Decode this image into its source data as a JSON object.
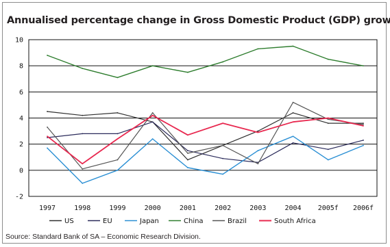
{
  "page": {
    "title": "Annualised percentage change in Gross Domestic Product (GDP) growth",
    "source": "Source: Standard Bank of SA – Economic Research Division."
  },
  "chart_data": {
    "type": "line",
    "title": "Annualised percentage change in Gross Domestic Product (GDP) growth",
    "xlabel": "",
    "ylabel": "",
    "categories": [
      "1997",
      "1998",
      "1999",
      "2000",
      "2001",
      "2002",
      "2003",
      "2004",
      "2005f",
      "2006f"
    ],
    "ylim": [
      -2,
      10
    ],
    "yticks": [
      -2,
      0,
      2,
      4,
      6,
      8,
      10
    ],
    "grid": "horizontal",
    "legend_position": "bottom",
    "series": [
      {
        "name": "US",
        "color": "#2f2f2f",
        "values": [
          4.5,
          4.2,
          4.4,
          3.7,
          0.8,
          1.9,
          3.0,
          4.4,
          3.6,
          3.6
        ]
      },
      {
        "name": "EU",
        "color": "#2a2a5a",
        "values": [
          2.5,
          2.8,
          2.8,
          3.7,
          1.5,
          0.9,
          0.6,
          2.1,
          1.6,
          2.3
        ]
      },
      {
        "name": "Japan",
        "color": "#2a8fd4",
        "values": [
          1.7,
          -1.0,
          0.0,
          2.4,
          0.2,
          -0.3,
          1.5,
          2.6,
          0.8,
          1.9
        ]
      },
      {
        "name": "China",
        "color": "#2e7d2e",
        "values": [
          8.8,
          7.8,
          7.1,
          8.0,
          7.5,
          8.3,
          9.3,
          9.5,
          8.5,
          8.0
        ]
      },
      {
        "name": "Brazil",
        "color": "#555555",
        "values": [
          3.3,
          0.1,
          0.8,
          4.4,
          1.3,
          1.9,
          0.5,
          5.2,
          3.9,
          3.5
        ]
      },
      {
        "name": "South Africa",
        "color": "#e8284f",
        "values": [
          2.6,
          0.5,
          2.4,
          4.2,
          2.7,
          3.6,
          2.9,
          3.7,
          4.0,
          3.4
        ]
      }
    ]
  }
}
